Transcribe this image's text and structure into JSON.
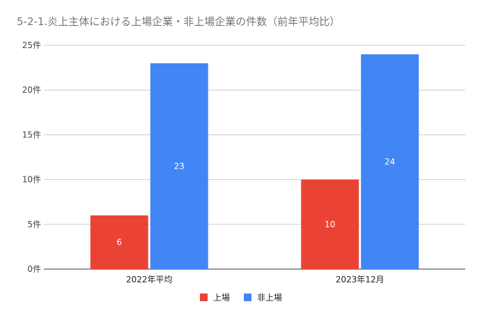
{
  "chart_data": {
    "type": "bar",
    "title": "5-2-1.炎上主体における上場企業・非上場企業の件数（前年平均比）",
    "categories": [
      "2022年平均",
      "2023年12月"
    ],
    "series": [
      {
        "name": "上場",
        "values": [
          6,
          10
        ],
        "color": "#ea4335"
      },
      {
        "name": "非上場",
        "values": [
          23,
          24
        ],
        "color": "#4285f4"
      }
    ],
    "ylim": [
      0,
      25
    ],
    "yticks": [
      0,
      5,
      10,
      15,
      20,
      25
    ],
    "ytick_labels": [
      "0件",
      "5件",
      "10件",
      "15件",
      "20件",
      "25件"
    ],
    "xlabel": "",
    "ylabel": "",
    "grid": true,
    "legend": "bottom"
  }
}
